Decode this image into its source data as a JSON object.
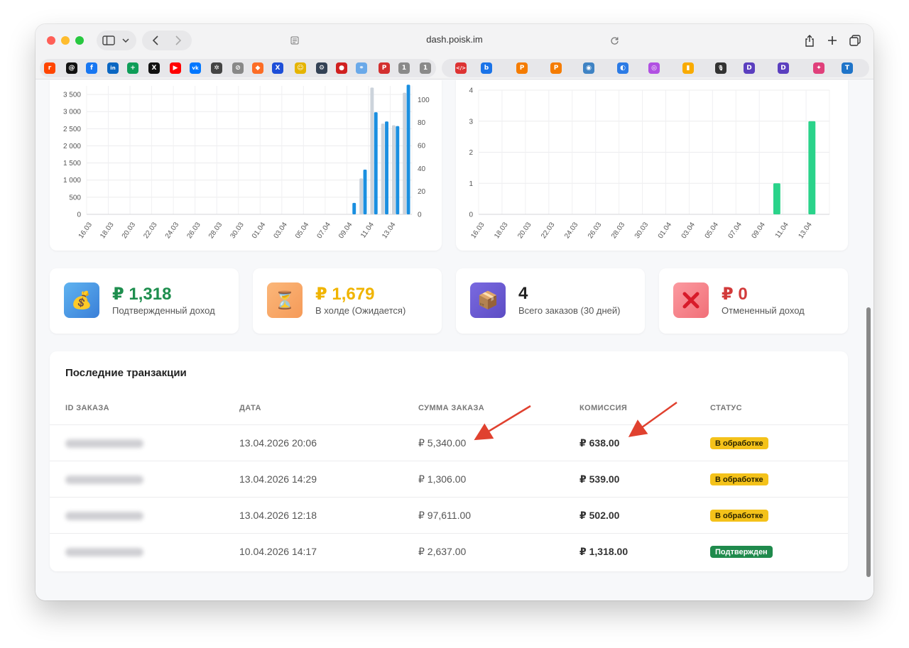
{
  "browser": {
    "url": "dash.poisk.im",
    "bookmarks": [
      {
        "icon": "reddit-icon",
        "color": "#ff4500",
        "glyph": "r"
      },
      {
        "icon": "threads-icon",
        "color": "#111111",
        "glyph": "@"
      },
      {
        "icon": "facebook-icon",
        "color": "#1877f2",
        "glyph": "f"
      },
      {
        "icon": "linkedin-icon",
        "color": "#0a66c2",
        "glyph": "in"
      },
      {
        "icon": "google-sheets-icon",
        "color": "#0f9d58",
        "glyph": "+"
      },
      {
        "icon": "x-icon",
        "color": "#111111",
        "glyph": "X"
      },
      {
        "icon": "youtube-icon",
        "color": "#ff0000",
        "glyph": "▶"
      },
      {
        "icon": "vk-icon",
        "color": "#0077ff",
        "glyph": "vk"
      },
      {
        "icon": "openai-icon",
        "color": "#444444",
        "glyph": "✲"
      },
      {
        "icon": "compass-icon",
        "color": "#888888",
        "glyph": "⊘"
      },
      {
        "icon": "gitlab-icon",
        "color": "#fc6d26",
        "glyph": "◆"
      },
      {
        "icon": "x-blue-icon",
        "color": "#1d4ed8",
        "glyph": "X"
      },
      {
        "icon": "emoji-icon",
        "color": "#e5b400",
        "glyph": "☺"
      },
      {
        "icon": "settings-circle-icon",
        "color": "#334155",
        "glyph": "⚙"
      },
      {
        "icon": "red-circle-icon",
        "color": "#d02020",
        "glyph": "●"
      },
      {
        "icon": "link-icon",
        "color": "#6aa9e9",
        "glyph": "⚭"
      },
      {
        "icon": "p-red-icon",
        "color": "#d32f2f",
        "glyph": "P"
      },
      {
        "icon": "tab-count-1-icon",
        "color": "#8a8a8a",
        "glyph": "1"
      },
      {
        "icon": "tab-count-1-icon",
        "color": "#8a8a8a",
        "glyph": "1"
      },
      {
        "icon": "code-icon",
        "color": "#d33",
        "glyph": "</>"
      },
      {
        "icon": "bing-icon",
        "color": "#1a73e8",
        "glyph": "b"
      },
      {
        "icon": "p-orange-icon",
        "color": "#f57c00",
        "glyph": "P"
      },
      {
        "icon": "p-orange-icon",
        "color": "#f57c00",
        "glyph": "P"
      },
      {
        "icon": "globe-icon",
        "color": "#3f83c4",
        "glyph": "◉"
      },
      {
        "icon": "color-ring-icon",
        "color": "#2c7be5",
        "glyph": "◐"
      },
      {
        "icon": "podcast-icon",
        "color": "#b150e2",
        "glyph": "◎"
      },
      {
        "icon": "analytics-icon",
        "color": "#f9ab00",
        "glyph": "▮"
      },
      {
        "icon": "microphone-icon",
        "color": "#333333",
        "glyph": "🎙"
      },
      {
        "icon": "dev-icon",
        "color": "#5b3fbf",
        "glyph": "D"
      },
      {
        "icon": "dev-icon",
        "color": "#5b3fbf",
        "glyph": "D"
      },
      {
        "icon": "star-icon",
        "color": "#e0407b",
        "glyph": "✦"
      },
      {
        "icon": "t-icon",
        "color": "#1f74c9",
        "glyph": "T"
      }
    ]
  },
  "chart_data": [
    {
      "type": "bar",
      "categories": [
        "16.03",
        "17.03",
        "18.03",
        "19.03",
        "20.03",
        "21.03",
        "22.03",
        "23.03",
        "24.03",
        "25.03",
        "26.03",
        "27.03",
        "28.03",
        "29.03",
        "30.03",
        "31.03",
        "01.04",
        "02.04",
        "03.04",
        "04.04",
        "05.04",
        "06.04",
        "07.04",
        "08.04",
        "09.04",
        "10.04",
        "11.04",
        "12.04",
        "13.04",
        "14.04"
      ],
      "tick_labels": [
        "16.03",
        "18.03",
        "20.03",
        "22.03",
        "24.03",
        "26.03",
        "28.03",
        "30.03",
        "01.04",
        "03.04",
        "05.04",
        "07.04",
        "09.04",
        "11.04",
        "13.04"
      ],
      "series": [
        {
          "axis": "left",
          "color": "#ccd3db",
          "values": [
            0,
            0,
            0,
            0,
            0,
            0,
            0,
            0,
            0,
            0,
            0,
            0,
            0,
            0,
            0,
            0,
            0,
            0,
            0,
            0,
            0,
            0,
            0,
            0,
            0,
            1050,
            3700,
            2650,
            2600,
            3550
          ]
        },
        {
          "axis": "right",
          "color": "#1a8fe0",
          "values": [
            0,
            0,
            0,
            0,
            0,
            0,
            0,
            0,
            0,
            0,
            0,
            0,
            0,
            0,
            0,
            0,
            0,
            0,
            0,
            0,
            0,
            0,
            0,
            0,
            10,
            39,
            89,
            81,
            77,
            113
          ]
        }
      ],
      "yleft_ticks": [
        "0",
        "500",
        "1 000",
        "1 500",
        "2 000",
        "2 500",
        "3 000",
        "3 500"
      ],
      "yleft_lim": [
        0,
        3750
      ],
      "yright_ticks": [
        "0",
        "20",
        "40",
        "60",
        "80",
        "100"
      ],
      "yright_lim": [
        0,
        112
      ],
      "grid": true
    },
    {
      "type": "bar",
      "categories": [
        "16.03",
        "17.03",
        "18.03",
        "19.03",
        "20.03",
        "21.03",
        "22.03",
        "23.03",
        "24.03",
        "25.03",
        "26.03",
        "27.03",
        "28.03",
        "29.03",
        "30.03",
        "31.03",
        "01.04",
        "02.04",
        "03.04",
        "04.04",
        "05.04",
        "06.04",
        "07.04",
        "08.04",
        "09.04",
        "10.04",
        "11.04",
        "12.04",
        "13.04",
        "14.04"
      ],
      "tick_labels": [
        "16.03",
        "18.03",
        "20.03",
        "22.03",
        "24.03",
        "26.03",
        "28.03",
        "30.03",
        "01.04",
        "03.04",
        "05.04",
        "07.04",
        "09.04",
        "11.04",
        "13.04"
      ],
      "series": [
        {
          "axis": "left",
          "color": "#2ad38a",
          "values": [
            0,
            0,
            0,
            0,
            0,
            0,
            0,
            0,
            0,
            0,
            0,
            0,
            0,
            0,
            0,
            0,
            0,
            0,
            0,
            0,
            0,
            0,
            0,
            0,
            0,
            1,
            0,
            0,
            3,
            0
          ]
        }
      ],
      "yleft_ticks": [
        "0",
        "1",
        "2",
        "3",
        "4"
      ],
      "yleft_lim": [
        0,
        4
      ],
      "grid": true
    }
  ],
  "stats": [
    {
      "value": "₽ 1,318",
      "label": "Подтвержденный доход",
      "color": "#1e8e4e",
      "icon": "money-bag-icon",
      "icon_bg": "#4a9fe6",
      "glyph": "💰"
    },
    {
      "value": "₽ 1,679",
      "label": "В холде (Ожидается)",
      "color": "#f0b400",
      "icon": "hourglass-icon",
      "icon_bg": "#f6a768",
      "glyph": "⏳"
    },
    {
      "value": "4",
      "label": "Всего заказов (30 дней)",
      "color": "#222222",
      "icon": "package-icon",
      "icon_bg": "#6d5fd1",
      "glyph": "📦"
    },
    {
      "value": "₽ 0",
      "label": "Отмененный доход",
      "color": "#d23a3a",
      "icon": "cross-mark-icon",
      "icon_bg": "#f77f86",
      "glyph": "✖"
    }
  ],
  "transactions": {
    "title": "Последние транзакции",
    "headers": [
      "ID ЗАКАЗА",
      "ДАТА",
      "СУММА ЗАКАЗА",
      "КОМИССИЯ",
      "СТАТУС"
    ],
    "rows": [
      {
        "date": "13.04.2026 20:06",
        "amount": "₽ 5,340.00",
        "commission": "₽ 638.00",
        "status": "В обработке",
        "status_type": "pending"
      },
      {
        "date": "13.04.2026 14:29",
        "amount": "₽ 1,306.00",
        "commission": "₽ 539.00",
        "status": "В обработке",
        "status_type": "pending"
      },
      {
        "date": "13.04.2026 12:18",
        "amount": "₽ 97,611.00",
        "commission": "₽ 502.00",
        "status": "В обработке",
        "status_type": "pending"
      },
      {
        "date": "10.04.2026 14:17",
        "amount": "₽ 2,637.00",
        "commission": "₽ 1,318.00",
        "status": "Подтвержден",
        "status_type": "confirmed"
      }
    ],
    "status_colors": {
      "pending": "#f4c21a",
      "confirmed": "#1f8a4c"
    }
  }
}
